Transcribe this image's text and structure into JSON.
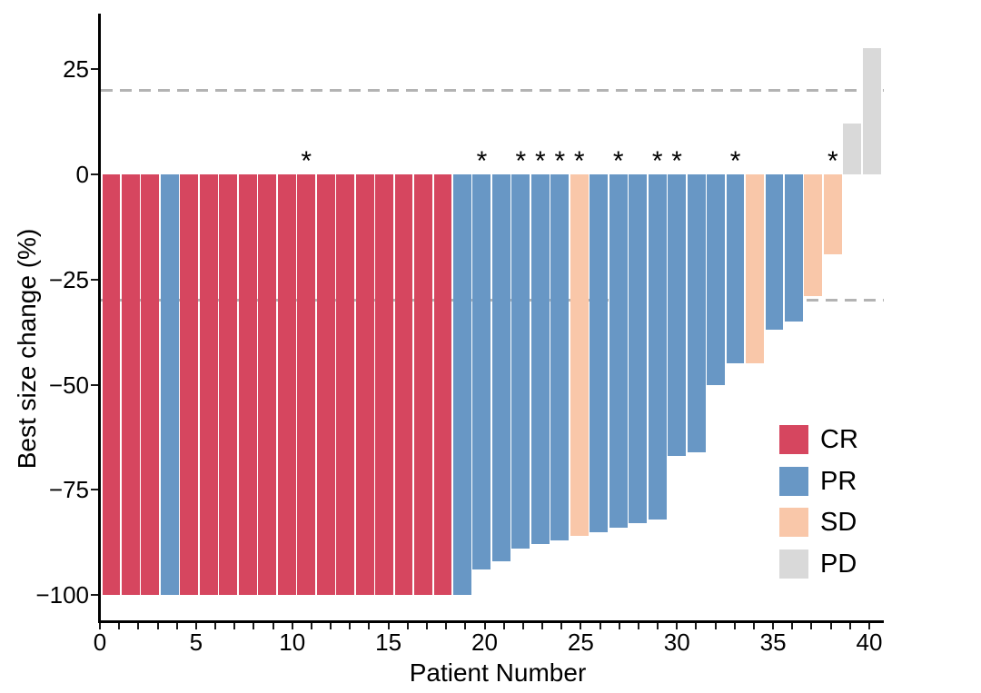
{
  "figure": {
    "kind": "waterfall-plot",
    "background": "#ffffff"
  },
  "chart_data": {
    "type": "bar",
    "title": "",
    "xlabel": "Patient Number",
    "ylabel": "Best size change (%)",
    "xlim": [
      0,
      40.8
    ],
    "ylim": [
      -106,
      38
    ],
    "grid": false,
    "x_minor_tick_step": 1,
    "x_tick_labels": [
      {
        "value": 0,
        "label": "0"
      },
      {
        "value": 5,
        "label": "5"
      },
      {
        "value": 10,
        "label": "10"
      },
      {
        "value": 15,
        "label": "15"
      },
      {
        "value": 20,
        "label": "20"
      },
      {
        "value": 25,
        "label": "25"
      },
      {
        "value": 30,
        "label": "30"
      },
      {
        "value": 35,
        "label": "35"
      },
      {
        "value": 40,
        "label": "40"
      }
    ],
    "y_tick_labels": [
      {
        "value": 25,
        "label": "25"
      },
      {
        "value": 0,
        "label": "0"
      },
      {
        "value": -25,
        "label": "−25"
      },
      {
        "value": -50,
        "label": "−50"
      },
      {
        "value": -75,
        "label": "−75"
      },
      {
        "value": -100,
        "label": "−100"
      }
    ],
    "reference_lines": [
      {
        "value": 20,
        "style": "dashed",
        "color": "#b3b3b3"
      },
      {
        "value": -30,
        "style": "dashed",
        "color": "#b3b3b3"
      }
    ],
    "annotation_symbol": "*",
    "response_colors": {
      "CR": "#d6465f",
      "PR": "#6897c5",
      "SD": "#f9c7a9",
      "PD": "#d9d9d9"
    },
    "legend": {
      "position": "inside-bottom-right",
      "entries": [
        {
          "label": "CR",
          "color": "#d6465f"
        },
        {
          "label": "PR",
          "color": "#6897c5"
        },
        {
          "label": "SD",
          "color": "#f9c7a9"
        },
        {
          "label": "PD",
          "color": "#d9d9d9"
        }
      ]
    },
    "series": [
      {
        "patient": 1,
        "best_size_change_pct": -100,
        "response": "CR",
        "asterisk": false
      },
      {
        "patient": 2,
        "best_size_change_pct": -100,
        "response": "CR",
        "asterisk": false
      },
      {
        "patient": 3,
        "best_size_change_pct": -100,
        "response": "CR",
        "asterisk": false
      },
      {
        "patient": 4,
        "best_size_change_pct": -100,
        "response": "PR",
        "asterisk": false
      },
      {
        "patient": 5,
        "best_size_change_pct": -100,
        "response": "CR",
        "asterisk": false
      },
      {
        "patient": 6,
        "best_size_change_pct": -100,
        "response": "CR",
        "asterisk": false
      },
      {
        "patient": 7,
        "best_size_change_pct": -100,
        "response": "CR",
        "asterisk": false
      },
      {
        "patient": 8,
        "best_size_change_pct": -100,
        "response": "CR",
        "asterisk": false
      },
      {
        "patient": 9,
        "best_size_change_pct": -100,
        "response": "CR",
        "asterisk": false
      },
      {
        "patient": 10,
        "best_size_change_pct": -100,
        "response": "CR",
        "asterisk": false
      },
      {
        "patient": 11,
        "best_size_change_pct": -100,
        "response": "CR",
        "asterisk": true
      },
      {
        "patient": 12,
        "best_size_change_pct": -100,
        "response": "CR",
        "asterisk": false
      },
      {
        "patient": 13,
        "best_size_change_pct": -100,
        "response": "CR",
        "asterisk": false
      },
      {
        "patient": 14,
        "best_size_change_pct": -100,
        "response": "CR",
        "asterisk": false
      },
      {
        "patient": 15,
        "best_size_change_pct": -100,
        "response": "CR",
        "asterisk": false
      },
      {
        "patient": 16,
        "best_size_change_pct": -100,
        "response": "CR",
        "asterisk": false
      },
      {
        "patient": 17,
        "best_size_change_pct": -100,
        "response": "CR",
        "asterisk": false
      },
      {
        "patient": 18,
        "best_size_change_pct": -100,
        "response": "CR",
        "asterisk": false
      },
      {
        "patient": 19,
        "best_size_change_pct": -100,
        "response": "PR",
        "asterisk": false
      },
      {
        "patient": 20,
        "best_size_change_pct": -94,
        "response": "PR",
        "asterisk": true
      },
      {
        "patient": 21,
        "best_size_change_pct": -92,
        "response": "PR",
        "asterisk": false
      },
      {
        "patient": 22,
        "best_size_change_pct": -89,
        "response": "PR",
        "asterisk": true
      },
      {
        "patient": 23,
        "best_size_change_pct": -88,
        "response": "PR",
        "asterisk": true
      },
      {
        "patient": 24,
        "best_size_change_pct": -87,
        "response": "PR",
        "asterisk": true
      },
      {
        "patient": 25,
        "best_size_change_pct": -86,
        "response": "SD",
        "asterisk": true
      },
      {
        "patient": 26,
        "best_size_change_pct": -85,
        "response": "PR",
        "asterisk": false
      },
      {
        "patient": 27,
        "best_size_change_pct": -84,
        "response": "PR",
        "asterisk": true
      },
      {
        "patient": 28,
        "best_size_change_pct": -83,
        "response": "PR",
        "asterisk": false
      },
      {
        "patient": 29,
        "best_size_change_pct": -82,
        "response": "PR",
        "asterisk": true
      },
      {
        "patient": 30,
        "best_size_change_pct": -67,
        "response": "PR",
        "asterisk": true
      },
      {
        "patient": 31,
        "best_size_change_pct": -66,
        "response": "PR",
        "asterisk": false
      },
      {
        "patient": 32,
        "best_size_change_pct": -50,
        "response": "PR",
        "asterisk": false
      },
      {
        "patient": 33,
        "best_size_change_pct": -45,
        "response": "PR",
        "asterisk": true
      },
      {
        "patient": 34,
        "best_size_change_pct": -45,
        "response": "SD",
        "asterisk": false
      },
      {
        "patient": 35,
        "best_size_change_pct": -37,
        "response": "PR",
        "asterisk": false
      },
      {
        "patient": 36,
        "best_size_change_pct": -35,
        "response": "PR",
        "asterisk": false
      },
      {
        "patient": 37,
        "best_size_change_pct": -29,
        "response": "SD",
        "asterisk": false
      },
      {
        "patient": 38,
        "best_size_change_pct": -19,
        "response": "SD",
        "asterisk": true
      },
      {
        "patient": 39,
        "best_size_change_pct": 12,
        "response": "PD",
        "asterisk": false
      },
      {
        "patient": 40,
        "best_size_change_pct": 30,
        "response": "PD",
        "asterisk": false
      }
    ]
  }
}
